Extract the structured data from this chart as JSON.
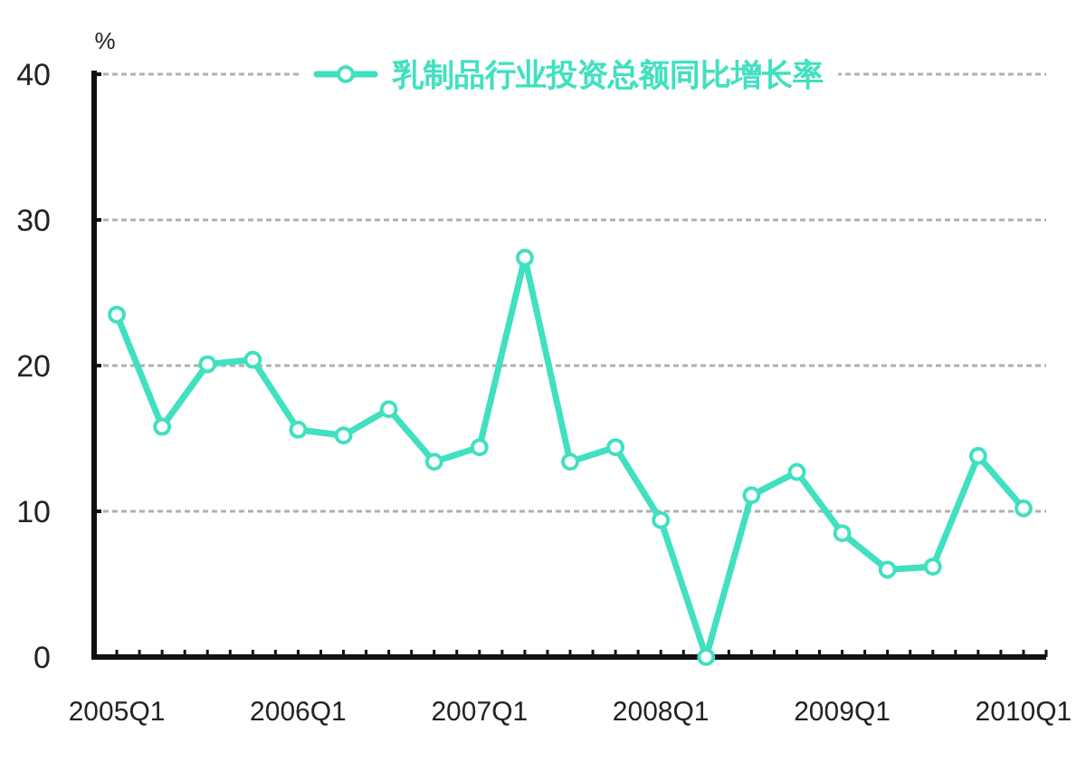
{
  "chart_data": {
    "type": "line",
    "ylabel": "%",
    "categories": [
      "2005Q1",
      null,
      null,
      null,
      "2006Q1",
      null,
      null,
      null,
      "2007Q1",
      null,
      null,
      null,
      "2008Q1",
      null,
      null,
      null,
      "2009Q1",
      null,
      null,
      null,
      "2010Q1"
    ],
    "series": [
      {
        "name": "乳制品行业投资总额同比增长率",
        "color": "#40e0c0",
        "values": [
          23.5,
          15.8,
          20.1,
          20.4,
          15.6,
          15.2,
          17.0,
          13.4,
          14.4,
          27.4,
          13.4,
          14.4,
          9.4,
          0,
          11.1,
          12.7,
          8.5,
          6.0,
          6.2,
          13.8,
          10.2
        ]
      }
    ],
    "ylim": [
      0,
      40
    ],
    "yticks": [
      0,
      10,
      20,
      30,
      40
    ],
    "grid": "y",
    "legend": "top",
    "marker": "circle",
    "line_style": "solid"
  }
}
